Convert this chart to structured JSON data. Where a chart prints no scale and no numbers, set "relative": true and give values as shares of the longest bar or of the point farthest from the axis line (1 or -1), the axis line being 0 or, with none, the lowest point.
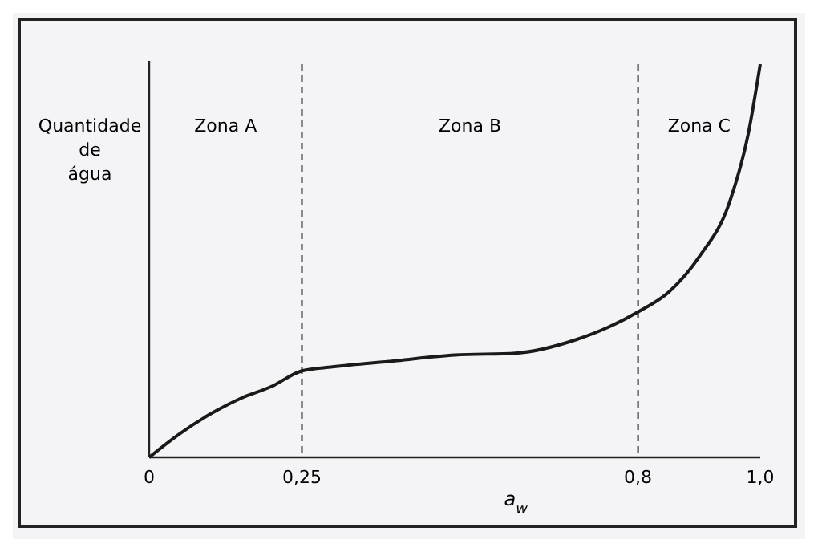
{
  "chart_data": {
    "type": "line",
    "relative": true,
    "xlabel": "a$_{w}$",
    "ylabel": "Quantidade de água",
    "x": [
      0,
      0.05,
      0.1,
      0.15,
      0.2,
      0.25,
      0.3,
      0.4,
      0.5,
      0.6,
      0.7,
      0.75,
      0.8,
      0.85,
      0.9,
      0.95,
      0.98,
      1.0
    ],
    "series": [
      {
        "color": "#1a1a1a",
        "values": [
          0,
          0.06,
          0.11,
          0.15,
          0.18,
          0.22,
          0.23,
          0.245,
          0.26,
          0.265,
          0.3,
          0.33,
          0.37,
          0.42,
          0.51,
          0.65,
          0.82,
          1.0
        ]
      }
    ],
    "xlim": [
      0,
      1
    ],
    "xticks": [
      {
        "value": 0,
        "label": "0"
      },
      {
        "value": 0.25,
        "label": "0,25"
      },
      {
        "value": 0.8,
        "label": "0,8"
      },
      {
        "value": 1,
        "label": "1,0"
      }
    ],
    "tick_labels": "x",
    "ref_lines": [
      {
        "axis": "x",
        "value": 0.25,
        "label": null,
        "line_style": "dashed"
      },
      {
        "axis": "x",
        "value": 0.8,
        "label": null,
        "line_style": "dashed"
      }
    ],
    "annotations": [
      "Zona A",
      "Zona B",
      "Zona C"
    ]
  }
}
